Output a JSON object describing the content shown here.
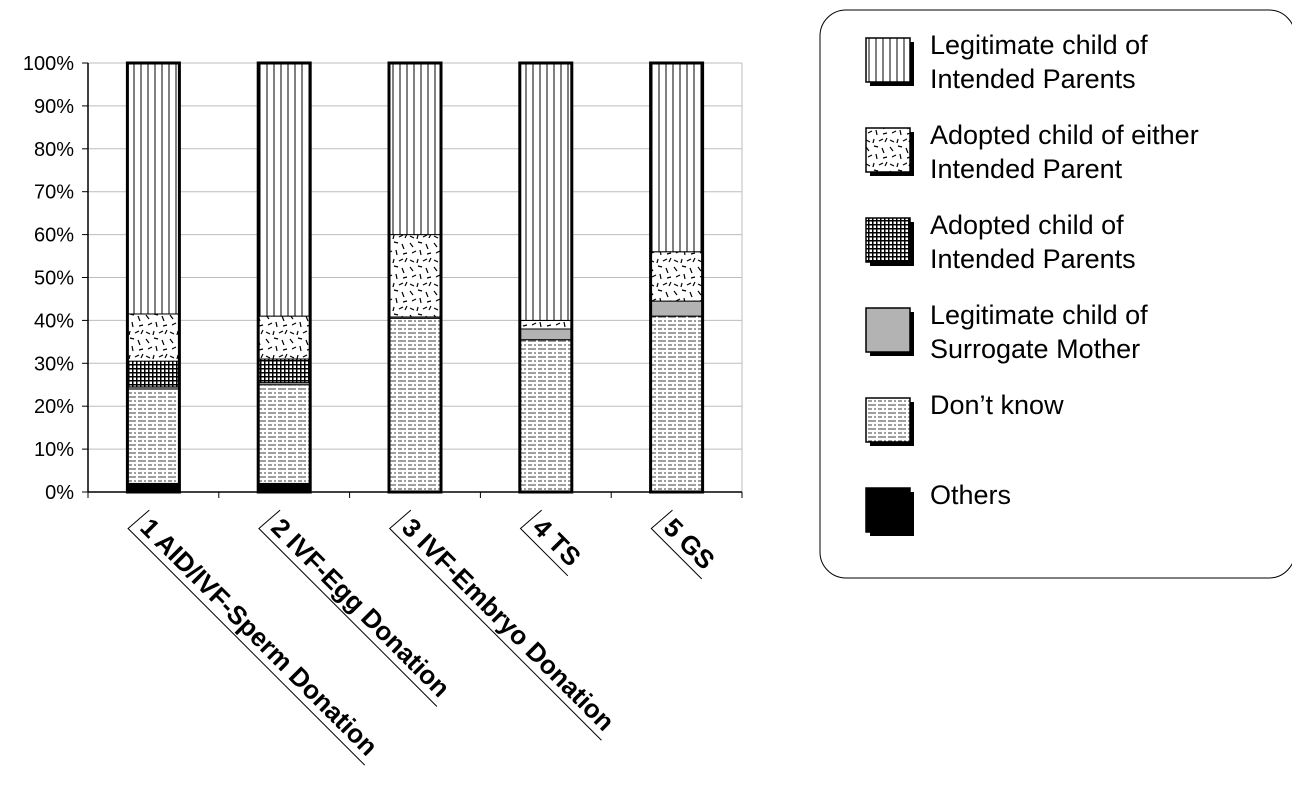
{
  "chart_data": {
    "type": "bar",
    "stacked": true,
    "percent": true,
    "categories": [
      "1 AID/IVF-Sperm Donation",
      "2 IVF-Egg Donation",
      "3 IVF-Embryo Donation",
      "4 TS",
      "5 GS"
    ],
    "series": [
      {
        "name": "Others",
        "values": [
          2,
          2,
          0,
          0,
          0
        ],
        "pattern": "solid-black"
      },
      {
        "name": "Don’t know",
        "values": [
          22,
          23,
          40.5,
          35.5,
          41
        ],
        "pattern": "dotted-dashed-horizontal"
      },
      {
        "name": "Legitimate child of Surrogate Mother",
        "values": [
          0.5,
          0.5,
          0.3,
          2.5,
          3.5
        ],
        "pattern": "solid-gray"
      },
      {
        "name": "Adopted child of Intended Parents",
        "values": [
          6,
          5.5,
          0,
          0,
          0
        ],
        "pattern": "crosshatch-dark"
      },
      {
        "name": "Adopted child of either Intended Parent",
        "values": [
          11,
          10,
          19.2,
          2,
          11.5
        ],
        "pattern": "random-dashes"
      },
      {
        "name": "Legitimate child of Intended Parents",
        "values": [
          58.5,
          59,
          40,
          60,
          44
        ],
        "pattern": "vertical-lines"
      }
    ],
    "y_ticks": [
      "0%",
      "10%",
      "20%",
      "30%",
      "40%",
      "50%",
      "60%",
      "70%",
      "80%",
      "90%",
      "100%"
    ],
    "ylim": [
      0,
      100
    ],
    "grid": true,
    "legend_position": "right"
  },
  "legend": {
    "items": [
      {
        "series": "Legitimate child of Intended Parents",
        "lines": [
          "Legitimate child of",
          "Intended Parents"
        ],
        "pattern": "vertical-lines"
      },
      {
        "series": "Adopted child of either Intended Parent",
        "lines": [
          "Adopted child of either",
          "Intended Parent"
        ],
        "pattern": "random-dashes"
      },
      {
        "series": "Adopted child of Intended Parents",
        "lines": [
          "Adopted child of",
          "Intended Parents"
        ],
        "pattern": "crosshatch-dark"
      },
      {
        "series": "Legitimate child of Surrogate Mother",
        "lines": [
          "Legitimate child of",
          "Surrogate Mother"
        ],
        "pattern": "solid-gray"
      },
      {
        "series": "Don’t know",
        "lines": [
          "Don’t know"
        ],
        "pattern": "dotted-dashed-horizontal"
      },
      {
        "series": "Others",
        "lines": [
          "Others"
        ],
        "pattern": "solid-black"
      }
    ]
  },
  "colors": {
    "gridline": "#bdbdbd",
    "bar_outline": "#000000",
    "gray_fill": "#b3b3b3",
    "background": "#ffffff"
  }
}
